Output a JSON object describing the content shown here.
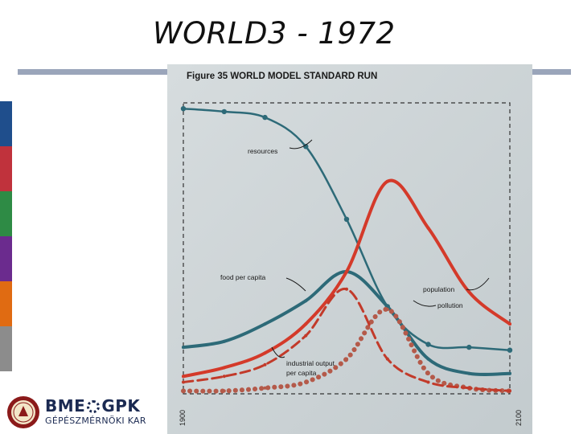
{
  "slide": {
    "title": "WORLD3 - 1972",
    "side_colors": [
      "#1f4e8c",
      "#c0323c",
      "#2e8b45",
      "#6b2b8e",
      "#e06b12",
      "#8c8c8c"
    ],
    "accent_rule": "#9aa5ba"
  },
  "logo": {
    "wordmark_left": "BME",
    "wordmark_right": "GPK",
    "subtitle": "GÉPÉSZMÉRNÖKI KAR",
    "seal_color": "#8b1a1a",
    "icon": "gear-icon"
  },
  "chart_data": {
    "type": "line",
    "title": "Figure 35 WORLD MODEL STANDARD RUN",
    "xlabel": "",
    "ylabel": "",
    "x_tick_labels": [
      "1900",
      "2100"
    ],
    "xlim": [
      1900,
      2100
    ],
    "ylim": [
      0,
      1
    ],
    "grid": false,
    "x": [
      1900,
      1925,
      1950,
      1975,
      2000,
      2025,
      2050,
      2075,
      2100
    ],
    "series": [
      {
        "name": "resources",
        "color": "#2d6a78",
        "style": "dotted-line",
        "values": [
          0.98,
          0.97,
          0.95,
          0.85,
          0.6,
          0.3,
          0.17,
          0.16,
          0.15
        ]
      },
      {
        "name": "food per capita",
        "color": "#2d6a78",
        "style": "solid",
        "values": [
          0.16,
          0.18,
          0.24,
          0.32,
          0.42,
          0.3,
          0.12,
          0.07,
          0.07
        ]
      },
      {
        "name": "population",
        "color": "#d43a2a",
        "style": "solid",
        "values": [
          0.06,
          0.09,
          0.14,
          0.24,
          0.42,
          0.73,
          0.57,
          0.35,
          0.24
        ]
      },
      {
        "name": "pollution",
        "color": "#b45a4a",
        "style": "dotted",
        "values": [
          0.01,
          0.01,
          0.02,
          0.04,
          0.12,
          0.29,
          0.07,
          0.02,
          0.01
        ]
      },
      {
        "name": "industrial output per capita",
        "color": "#c23a2a",
        "style": "dashed",
        "values": [
          0.04,
          0.06,
          0.1,
          0.2,
          0.36,
          0.12,
          0.04,
          0.02,
          0.01
        ]
      }
    ],
    "series_labels": [
      {
        "text": "resources"
      },
      {
        "text": "food per capita"
      },
      {
        "text": "population"
      },
      {
        "text": "pollution"
      },
      {
        "text": "industrial output"
      },
      {
        "text": "per capita"
      }
    ]
  }
}
